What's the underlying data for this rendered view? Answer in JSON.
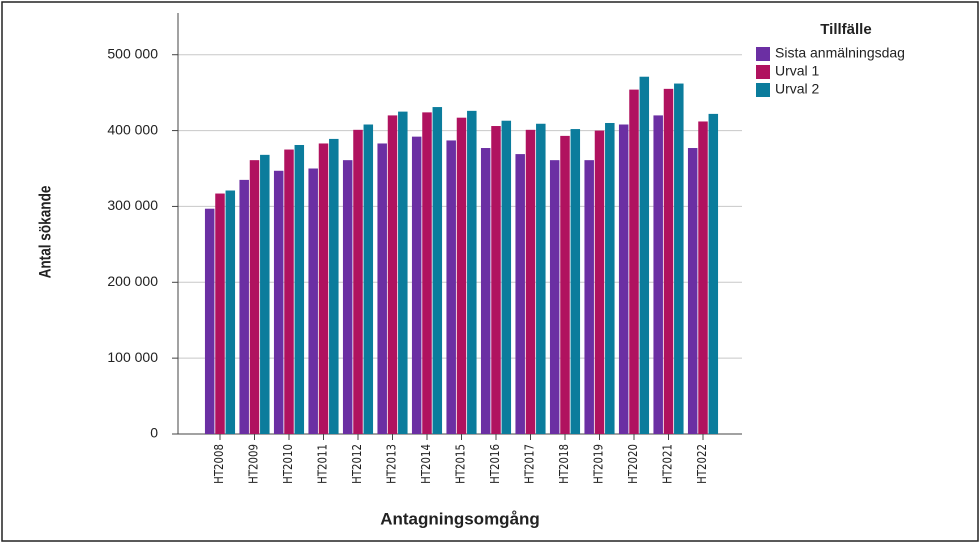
{
  "chart_data": {
    "type": "bar",
    "xlabel": "Antagningsomgång",
    "ylabel": "Antal sökande",
    "legend_title": "Tillfälle",
    "categories": [
      "HT2008",
      "HT2009",
      "HT2010",
      "HT2011",
      "HT2012",
      "HT2013",
      "HT2014",
      "HT2015",
      "HT2016",
      "HT2017",
      "HT2018",
      "HT2019",
      "HT2020",
      "HT2021",
      "HT2022"
    ],
    "series": [
      {
        "name": "Sista anmälningsdag",
        "color": "#6b2fa3",
        "values": [
          297000,
          335000,
          347000,
          350000,
          361000,
          383000,
          392000,
          387000,
          377000,
          369000,
          361000,
          361000,
          408000,
          420000,
          377000
        ]
      },
      {
        "name": "Urval 1",
        "color": "#b0125f",
        "values": [
          317000,
          361000,
          375000,
          383000,
          401000,
          420000,
          424000,
          417000,
          406000,
          401000,
          393000,
          400000,
          454000,
          455000,
          412000
        ]
      },
      {
        "name": "Urval 2",
        "color": "#0b7c9c",
        "values": [
          321000,
          368000,
          381000,
          389000,
          408000,
          425000,
          431000,
          426000,
          413000,
          409000,
          402000,
          410000,
          471000,
          462000,
          422000
        ]
      }
    ],
    "ylim": [
      0,
      555000
    ],
    "yticks": [
      0,
      {
        "value": 100000,
        "label": "100 000"
      },
      {
        "value": 200000,
        "label": "200 000"
      },
      {
        "value": 300000,
        "label": "300 000"
      },
      {
        "value": 400000,
        "label": "400 000"
      },
      {
        "value": 500000,
        "label": "500 000"
      }
    ],
    "grid": true,
    "legend": "upper right"
  }
}
